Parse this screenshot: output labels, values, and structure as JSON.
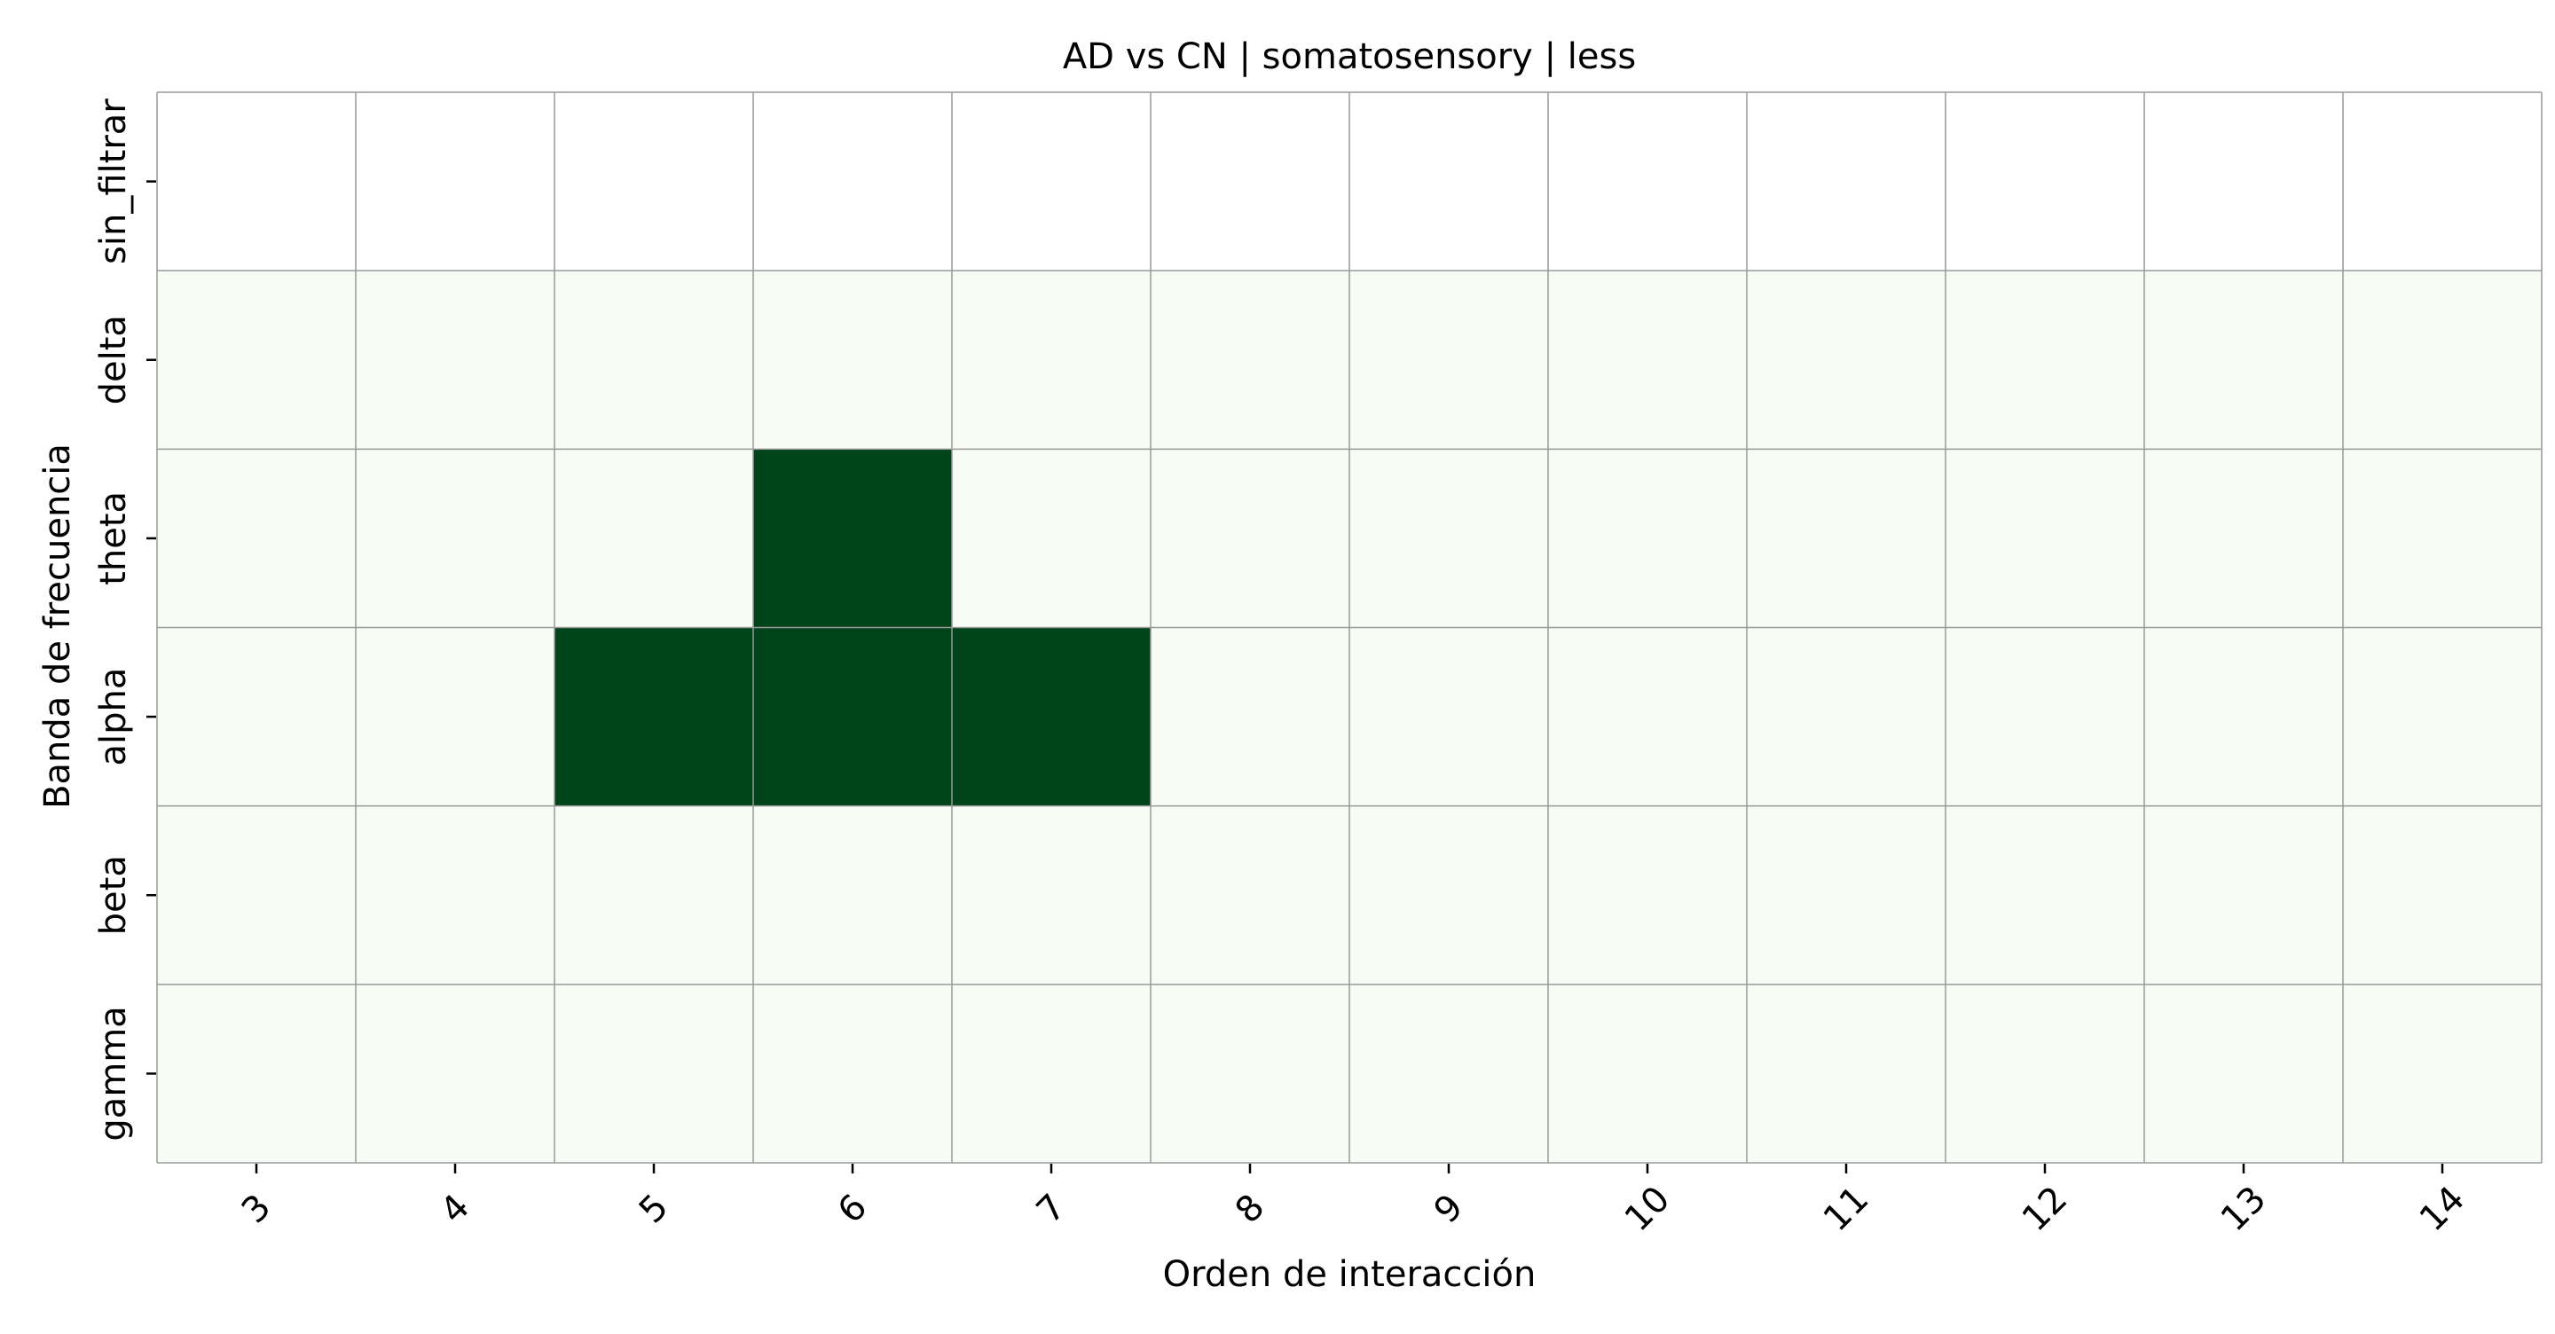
{
  "chart_data": {
    "type": "heatmap",
    "title": "AD vs CN | somatosensory | less",
    "xlabel": "Orden de interacción",
    "ylabel": "Banda de frecuencia",
    "x_categories": [
      "3",
      "4",
      "5",
      "6",
      "7",
      "8",
      "9",
      "10",
      "11",
      "12",
      "13",
      "14"
    ],
    "y_categories": [
      "sin_filtrar",
      "delta",
      "theta",
      "alpha",
      "beta",
      "gamma"
    ],
    "values": [
      [
        null,
        null,
        null,
        null,
        null,
        null,
        null,
        null,
        null,
        null,
        null,
        null
      ],
      [
        0,
        0,
        0,
        0,
        0,
        0,
        0,
        0,
        0,
        0,
        0,
        0
      ],
      [
        0,
        0,
        0,
        1,
        0,
        0,
        0,
        0,
        0,
        0,
        0,
        0
      ],
      [
        0,
        0,
        1,
        1,
        1,
        0,
        0,
        0,
        0,
        0,
        0,
        0
      ],
      [
        0,
        0,
        0,
        0,
        0,
        0,
        0,
        0,
        0,
        0,
        0,
        0
      ],
      [
        0,
        0,
        0,
        0,
        0,
        0,
        0,
        0,
        0,
        0,
        0,
        0
      ]
    ],
    "colormap": "Greens",
    "colors": {
      "low": "#f7fcf5",
      "high": "#00441b",
      "missing": "#ffffff",
      "grid": "#999999"
    },
    "grid": true,
    "x_tick_rotation_deg": 45,
    "y_tick_rotation_deg": 90
  }
}
